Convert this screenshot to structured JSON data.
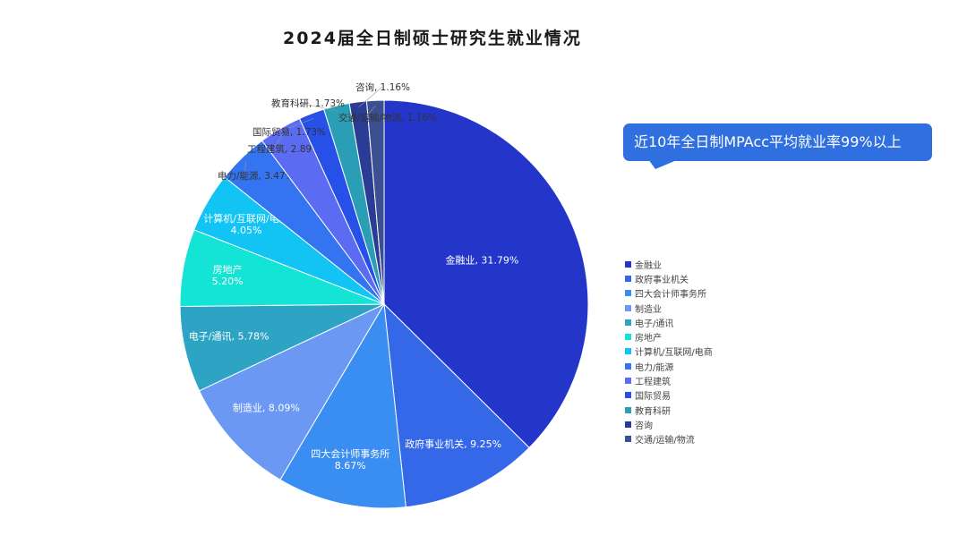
{
  "title": "2024届全日制硕士研究生就业情况",
  "callout": {
    "text": "近10年全日制MPAcc平均就业率99%以上"
  },
  "chart_data": {
    "type": "pie",
    "title": "2024届全日制硕士研究生就业情况",
    "start_angle_deg": 0,
    "direction": "clockwise",
    "legend_position": "right",
    "slices": [
      {
        "label": "金融业",
        "value": 31.79,
        "display": "31.79%",
        "color": "#2336c9",
        "label_style": "inline"
      },
      {
        "label": "政府事业机关",
        "value": 9.25,
        "display": "9.25%",
        "color": "#3468e8",
        "label_style": "inline"
      },
      {
        "label": "四大会计师事务所",
        "value": 8.67,
        "display": "8.67%",
        "color": "#3a8ef2",
        "label_style": "two-line"
      },
      {
        "label": "制造业",
        "value": 8.09,
        "display": "8.09%",
        "color": "#6a98f2",
        "label_style": "inline"
      },
      {
        "label": "电子/通讯",
        "value": 5.78,
        "display": "5.78%",
        "color": "#2ea4c4",
        "label_style": "inline"
      },
      {
        "label": "房地产",
        "value": 5.2,
        "display": "5.20%",
        "color": "#14e4d6",
        "label_style": "two-line"
      },
      {
        "label": "计算机/互联网/电商",
        "value": 4.05,
        "display": "4.05%",
        "color": "#12c4f4",
        "label_style": "two-line"
      },
      {
        "label": "电力/能源",
        "value": 3.47,
        "display": "3.47%",
        "color": "#3474f0",
        "label_style": "outside"
      },
      {
        "label": "工程建筑",
        "value": 2.89,
        "display": "2.89%",
        "color": "#5c6cf2",
        "label_style": "outside"
      },
      {
        "label": "国际贸易",
        "value": 1.73,
        "display": "1.73%",
        "color": "#2650e8",
        "label_style": "outside"
      },
      {
        "label": "教育科研",
        "value": 1.73,
        "display": "1.73%",
        "color": "#2a9eb4",
        "label_style": "outside"
      },
      {
        "label": "咨询",
        "value": 1.16,
        "display": "1.16%",
        "color": "#2a3c96",
        "label_style": "outside"
      },
      {
        "label": "交通/运输/物流",
        "value": 1.16,
        "display": "1.16%",
        "color": "#3a5090",
        "label_style": "outside"
      }
    ]
  }
}
